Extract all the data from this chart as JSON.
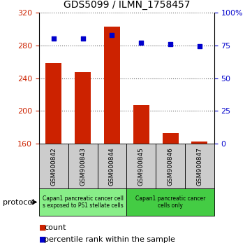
{
  "title": "GDS5099 / ILMN_1758457",
  "samples": [
    "GSM900842",
    "GSM900843",
    "GSM900844",
    "GSM900845",
    "GSM900846",
    "GSM900847"
  ],
  "counts": [
    258,
    247,
    303,
    207,
    173,
    163
  ],
  "percentile_ranks": [
    80,
    80,
    83,
    77,
    76,
    74
  ],
  "ymin": 160,
  "ymax": 320,
  "yticks": [
    160,
    200,
    240,
    280,
    320
  ],
  "y2min": 0,
  "y2max": 100,
  "y2ticks": [
    0,
    25,
    50,
    75,
    100
  ],
  "y2ticklabels": [
    "0",
    "25",
    "50",
    "75",
    "100%"
  ],
  "bar_color": "#cc2200",
  "dot_color": "#0000cc",
  "ylabel_left_color": "#cc2200",
  "ylabel_right_color": "#0000cc",
  "tick_fontsize": 8,
  "title_fontsize": 10,
  "protocol_label": "protocol",
  "legend_count_label": "count",
  "legend_rank_label": "percentile rank within the sample",
  "legend_count_color": "#cc2200",
  "legend_dot_color": "#0000cc",
  "sample_box_color": "#cccccc",
  "group1_color": "#88ee88",
  "group2_color": "#44cc44",
  "group1_label": "Capan1 pancreatic cancer cell\ns exposed to PS1 stellate cells",
  "group2_label": "Capan1 pancreatic cancer\ncells only"
}
